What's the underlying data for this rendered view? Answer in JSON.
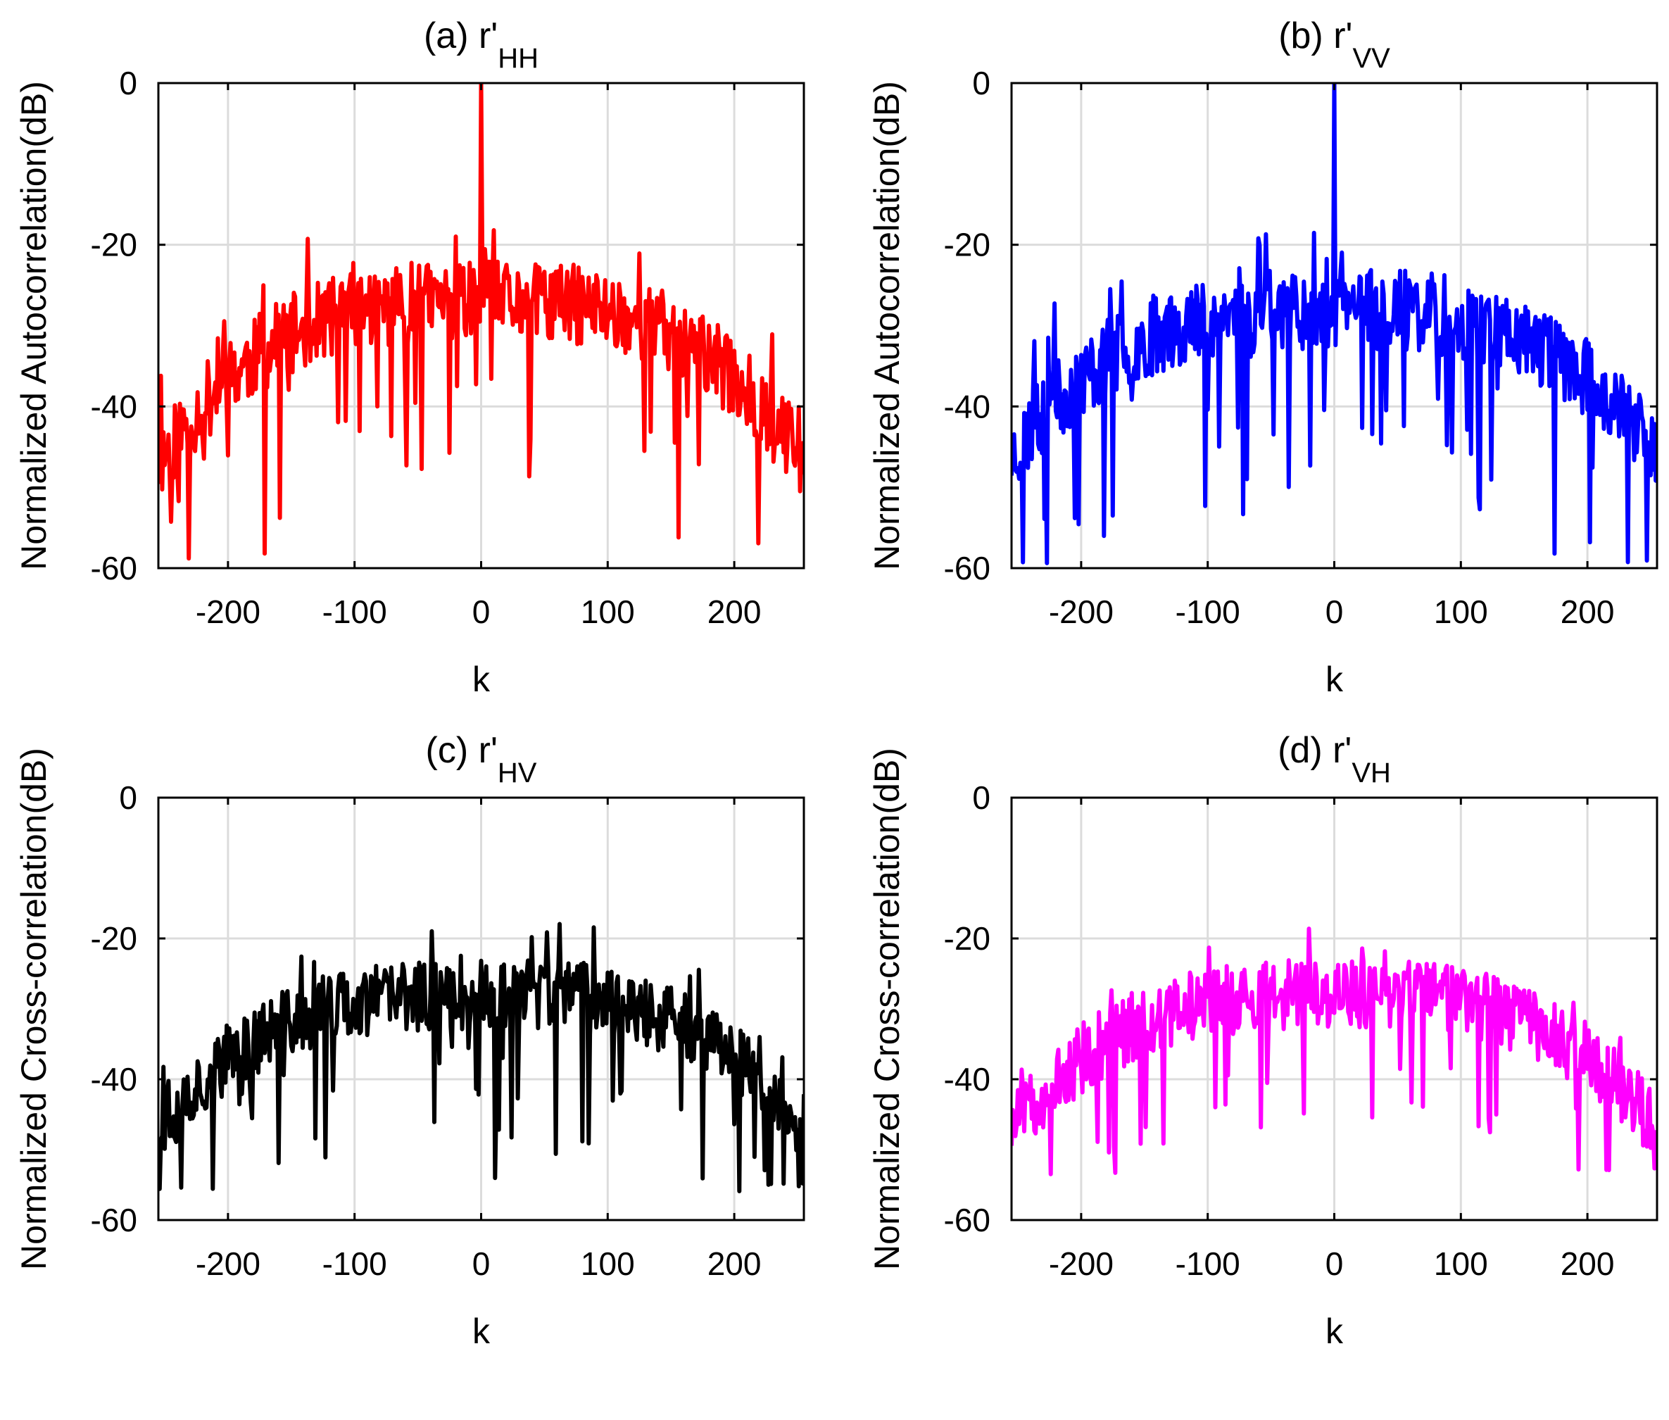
{
  "chart_data": [
    {
      "id": "a",
      "type": "line",
      "title": {
        "prefix": "(a) r'",
        "sub": "HH"
      },
      "xlabel": "k",
      "ylabel": "Normalized Autocorrelation(dB)",
      "xlim": [
        -255,
        255
      ],
      "ylim": [
        -60,
        0
      ],
      "xticks": [
        -200,
        -100,
        0,
        100,
        200
      ],
      "yticks": [
        0,
        -20,
        -40,
        -60
      ],
      "grid": true,
      "color": "#ff0000",
      "series": [
        {
          "name": "r'HH",
          "peak_at_k0": 0,
          "sidelobe_max": -17.5,
          "sidelobe_min": -59,
          "edge_level": -47,
          "center_level": -27,
          "seed": 11
        }
      ]
    },
    {
      "id": "b",
      "type": "line",
      "title": {
        "prefix": "(b) r'",
        "sub": "VV"
      },
      "xlabel": "k",
      "ylabel": "Normalized Autocorrelation(dB)",
      "xlim": [
        -255,
        255
      ],
      "ylim": [
        -60,
        0
      ],
      "xticks": [
        -200,
        -100,
        0,
        100,
        200
      ],
      "yticks": [
        0,
        -20,
        -40,
        -60
      ],
      "grid": true,
      "color": "#0000ff",
      "series": [
        {
          "name": "r'VV",
          "peak_at_k0": 0,
          "sidelobe_max": -18.5,
          "sidelobe_min": -60,
          "edge_level": -46,
          "center_level": -28,
          "seed": 23
        }
      ]
    },
    {
      "id": "c",
      "type": "line",
      "title": {
        "prefix": "(c) r'",
        "sub": "HV"
      },
      "xlabel": "k",
      "ylabel": "Normalized Cross-correlation(dB)",
      "xlim": [
        -255,
        255
      ],
      "ylim": [
        -60,
        0
      ],
      "xticks": [
        -200,
        -100,
        0,
        100,
        200
      ],
      "yticks": [
        0,
        -20,
        -40,
        -60
      ],
      "grid": true,
      "color": "#000000",
      "series": [
        {
          "name": "r'HV",
          "peak_at_k0": null,
          "sidelobe_max": -15.5,
          "sidelobe_min": -56,
          "edge_level": -47,
          "center_level": -28,
          "seed": 37
        }
      ]
    },
    {
      "id": "d",
      "type": "line",
      "title": {
        "prefix": "(d) r'",
        "sub": "VH"
      },
      "xlabel": "k",
      "ylabel": "Normalized Cross-correlation(dB)",
      "xlim": [
        -255,
        255
      ],
      "ylim": [
        -60,
        0
      ],
      "xticks": [
        -200,
        -100,
        0,
        100,
        200
      ],
      "yticks": [
        0,
        -20,
        -40,
        -60
      ],
      "grid": true,
      "color": "#ff00ff",
      "series": [
        {
          "name": "r'VH",
          "peak_at_k0": null,
          "sidelobe_max": -16,
          "sidelobe_min": -54,
          "edge_level": -47,
          "center_level": -28,
          "seed": 51
        }
      ]
    }
  ]
}
